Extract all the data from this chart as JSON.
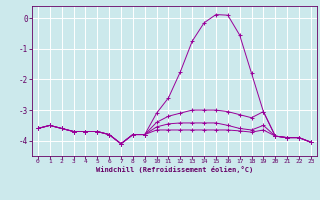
{
  "background_color": "#cce9ec",
  "grid_color": "#ffffff",
  "line_color": "#990099",
  "tick_color": "#660066",
  "xlabel": "Windchill (Refroidissement éolien,°C)",
  "xlim": [
    -0.5,
    23.5
  ],
  "ylim": [
    -4.5,
    0.4
  ],
  "yticks": [
    0,
    -1,
    -2,
    -3,
    -4
  ],
  "xticks": [
    0,
    1,
    2,
    3,
    4,
    5,
    6,
    7,
    8,
    9,
    10,
    11,
    12,
    13,
    14,
    15,
    16,
    17,
    18,
    19,
    20,
    21,
    22,
    23
  ],
  "series1_x": [
    0,
    1,
    2,
    3,
    4,
    5,
    6,
    7,
    8,
    9,
    10,
    11,
    12,
    13,
    14,
    15,
    16,
    17,
    18,
    19,
    20,
    21,
    22,
    23
  ],
  "series1_y": [
    -3.6,
    -3.5,
    -3.6,
    -3.7,
    -3.7,
    -3.7,
    -3.8,
    -4.1,
    -3.8,
    -3.8,
    -3.1,
    -2.6,
    -1.75,
    -0.75,
    -0.15,
    0.12,
    0.1,
    -0.55,
    -1.8,
    -3.05,
    -3.85,
    -3.9,
    -3.9,
    -4.05
  ],
  "series2_x": [
    0,
    1,
    2,
    3,
    4,
    5,
    6,
    7,
    8,
    9,
    10,
    11,
    12,
    13,
    14,
    15,
    16,
    17,
    18,
    19,
    20,
    21,
    22,
    23
  ],
  "series2_y": [
    -3.6,
    -3.5,
    -3.6,
    -3.7,
    -3.7,
    -3.7,
    -3.8,
    -4.1,
    -3.8,
    -3.8,
    -3.4,
    -3.2,
    -3.1,
    -3.0,
    -3.0,
    -3.0,
    -3.05,
    -3.15,
    -3.25,
    -3.05,
    -3.85,
    -3.9,
    -3.9,
    -4.05
  ],
  "series3_x": [
    0,
    1,
    2,
    3,
    4,
    5,
    6,
    7,
    8,
    9,
    10,
    11,
    12,
    13,
    14,
    15,
    16,
    17,
    18,
    19,
    20,
    21,
    22,
    23
  ],
  "series3_y": [
    -3.6,
    -3.5,
    -3.6,
    -3.7,
    -3.7,
    -3.7,
    -3.8,
    -4.1,
    -3.8,
    -3.8,
    -3.55,
    -3.45,
    -3.42,
    -3.42,
    -3.42,
    -3.42,
    -3.5,
    -3.6,
    -3.65,
    -3.5,
    -3.85,
    -3.9,
    -3.9,
    -4.05
  ],
  "series4_x": [
    0,
    1,
    2,
    3,
    4,
    5,
    6,
    7,
    8,
    9,
    10,
    11,
    12,
    13,
    14,
    15,
    16,
    17,
    18,
    19,
    20,
    21,
    22,
    23
  ],
  "series4_y": [
    -3.6,
    -3.5,
    -3.6,
    -3.7,
    -3.7,
    -3.7,
    -3.8,
    -4.1,
    -3.8,
    -3.8,
    -3.65,
    -3.65,
    -3.65,
    -3.65,
    -3.65,
    -3.65,
    -3.65,
    -3.68,
    -3.72,
    -3.65,
    -3.85,
    -3.9,
    -3.9,
    -4.05
  ]
}
